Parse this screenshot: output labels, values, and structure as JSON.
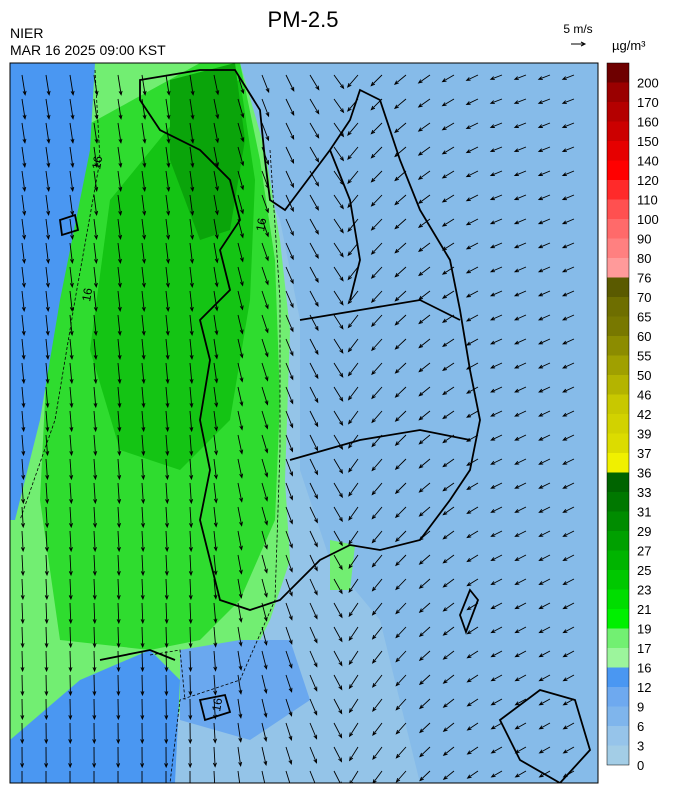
{
  "header": {
    "title": "PM-2.5",
    "agency": "NIER",
    "time": "MAR 16 2025 09:00 KST"
  },
  "wind_legend": {
    "label": "5 m/s"
  },
  "colorbar": {
    "unit": "µg/m³",
    "levels": [
      0,
      3,
      6,
      9,
      12,
      16,
      17,
      19,
      21,
      23,
      25,
      27,
      29,
      31,
      33,
      36,
      37,
      39,
      42,
      46,
      50,
      55,
      60,
      65,
      70,
      76,
      80,
      90,
      100,
      110,
      120,
      140,
      150,
      160,
      170,
      200
    ],
    "colors": [
      "#a3cde6",
      "#96c4ea",
      "#7fb5ec",
      "#6ea9ef",
      "#4a97f2",
      "#9cf59c",
      "#72f072",
      "#00f000",
      "#00dd00",
      "#00c800",
      "#00b400",
      "#00a000",
      "#008c00",
      "#007800",
      "#006400",
      "#f0f000",
      "#dcdc00",
      "#d2d200",
      "#c8c800",
      "#b4b400",
      "#a0a000",
      "#8c8c00",
      "#787800",
      "#6e6e00",
      "#5a5a00",
      "#ff9a9a",
      "#ff8080",
      "#ff6a6a",
      "#ff5050",
      "#ff2a2a",
      "#ff0000",
      "#e60000",
      "#cc0000",
      "#b40000",
      "#9a0000",
      "#6e0000"
    ]
  },
  "map": {
    "contour_labels": [
      16,
      16,
      16,
      16
    ]
  }
}
